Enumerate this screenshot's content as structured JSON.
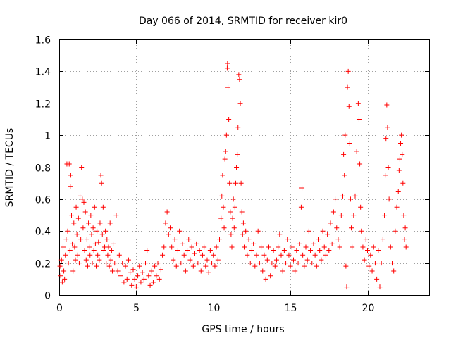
{
  "chart_data": {
    "type": "scatter",
    "title": "Day 066 of 2014, SRMTID for receiver kir0",
    "xlabel": "GPS time / hours",
    "ylabel": "SRMTID / TECUs",
    "xlim": [
      0,
      24
    ],
    "ylim": [
      0,
      1.6
    ],
    "grid": true,
    "marker": "+",
    "marker_color": "#ff0000",
    "x_ticks": [
      {
        "value": 0,
        "label": "0"
      },
      {
        "value": 5,
        "label": "5"
      },
      {
        "value": 10,
        "label": "10"
      },
      {
        "value": 15,
        "label": "15"
      },
      {
        "value": 20,
        "label": "20"
      }
    ],
    "y_ticks": [
      {
        "value": 0,
        "label": "0"
      },
      {
        "value": 0.2,
        "label": "0.2"
      },
      {
        "value": 0.4,
        "label": "0.4"
      },
      {
        "value": 0.6,
        "label": "0.6"
      },
      {
        "value": 0.8,
        "label": "0.8"
      },
      {
        "value": 1.0,
        "label": "1"
      },
      {
        "value": 1.2,
        "label": "1.2"
      },
      {
        "value": 1.4,
        "label": "1.4"
      },
      {
        "value": 1.6,
        "label": "1.6"
      }
    ],
    "series": [
      {
        "name": "SRMTID",
        "points": [
          [
            0.05,
            0.18
          ],
          [
            0.1,
            0.12
          ],
          [
            0.15,
            0.22
          ],
          [
            0.2,
            0.08
          ],
          [
            0.25,
            0.3
          ],
          [
            0.3,
            0.15
          ],
          [
            0.35,
            0.1
          ],
          [
            0.4,
            0.25
          ],
          [
            0.45,
            0.35
          ],
          [
            0.5,
            0.82
          ],
          [
            0.55,
            0.4
          ],
          [
            0.6,
            0.2
          ],
          [
            0.65,
            0.82
          ],
          [
            0.7,
            0.28
          ],
          [
            0.72,
            0.68
          ],
          [
            0.75,
            0.75
          ],
          [
            0.8,
            0.5
          ],
          [
            0.85,
            0.32
          ],
          [
            0.9,
            0.15
          ],
          [
            0.95,
            0.45
          ],
          [
            1.0,
            0.3
          ],
          [
            1.05,
            0.22
          ],
          [
            1.1,
            0.55
          ],
          [
            1.15,
            0.38
          ],
          [
            1.2,
            0.25
          ],
          [
            1.25,
            0.48
          ],
          [
            1.3,
            0.2
          ],
          [
            1.35,
            0.62
          ],
          [
            1.4,
            0.35
          ],
          [
            1.45,
            0.8
          ],
          [
            1.5,
            0.6
          ],
          [
            1.55,
            0.42
          ],
          [
            1.6,
            0.58
          ],
          [
            1.65,
            0.28
          ],
          [
            1.7,
            0.52
          ],
          [
            1.75,
            0.22
          ],
          [
            1.8,
            0.35
          ],
          [
            1.85,
            0.18
          ],
          [
            1.9,
            0.45
          ],
          [
            1.95,
            0.3
          ],
          [
            2.0,
            0.25
          ],
          [
            2.05,
            0.5
          ],
          [
            2.1,
            0.38
          ],
          [
            2.15,
            0.2
          ],
          [
            2.2,
            0.42
          ],
          [
            2.25,
            0.28
          ],
          [
            2.3,
            0.55
          ],
          [
            2.35,
            0.32
          ],
          [
            2.4,
            0.18
          ],
          [
            2.45,
            0.4
          ],
          [
            2.5,
            0.25
          ],
          [
            2.55,
            0.33
          ],
          [
            2.6,
            0.22
          ],
          [
            2.65,
            0.45
          ],
          [
            2.7,
            0.75
          ],
          [
            2.75,
            0.7
          ],
          [
            2.8,
            0.38
          ],
          [
            2.85,
            0.55
          ],
          [
            2.9,
            0.28
          ],
          [
            2.95,
            0.3
          ],
          [
            3.0,
            0.4
          ],
          [
            3.05,
            0.2
          ],
          [
            3.1,
            0.35
          ],
          [
            3.15,
            0.25
          ],
          [
            3.2,
            0.3
          ],
          [
            3.25,
            0.18
          ],
          [
            3.3,
            0.45
          ],
          [
            3.35,
            0.22
          ],
          [
            3.4,
            0.28
          ],
          [
            3.45,
            0.15
          ],
          [
            3.5,
            0.32
          ],
          [
            3.6,
            0.2
          ],
          [
            3.7,
            0.5
          ],
          [
            3.8,
            0.15
          ],
          [
            3.9,
            0.25
          ],
          [
            4.0,
            0.12
          ],
          [
            4.1,
            0.2
          ],
          [
            4.2,
            0.08
          ],
          [
            4.3,
            0.18
          ],
          [
            4.4,
            0.1
          ],
          [
            4.5,
            0.22
          ],
          [
            4.6,
            0.14
          ],
          [
            4.7,
            0.06
          ],
          [
            4.8,
            0.16
          ],
          [
            4.9,
            0.1
          ],
          [
            5.0,
            0.05
          ],
          [
            5.1,
            0.12
          ],
          [
            5.2,
            0.18
          ],
          [
            5.3,
            0.08
          ],
          [
            5.4,
            0.14
          ],
          [
            5.5,
            0.1
          ],
          [
            5.6,
            0.2
          ],
          [
            5.7,
            0.28
          ],
          [
            5.8,
            0.12
          ],
          [
            5.9,
            0.06
          ],
          [
            6.0,
            0.15
          ],
          [
            6.1,
            0.08
          ],
          [
            6.2,
            0.18
          ],
          [
            6.3,
            0.12
          ],
          [
            6.4,
            0.2
          ],
          [
            6.5,
            0.1
          ],
          [
            6.6,
            0.16
          ],
          [
            6.7,
            0.25
          ],
          [
            6.8,
            0.3
          ],
          [
            6.9,
            0.45
          ],
          [
            7.0,
            0.52
          ],
          [
            7.1,
            0.38
          ],
          [
            7.2,
            0.42
          ],
          [
            7.3,
            0.3
          ],
          [
            7.4,
            0.22
          ],
          [
            7.5,
            0.35
          ],
          [
            7.6,
            0.18
          ],
          [
            7.7,
            0.28
          ],
          [
            7.8,
            0.4
          ],
          [
            7.9,
            0.2
          ],
          [
            8.0,
            0.32
          ],
          [
            8.1,
            0.25
          ],
          [
            8.2,
            0.15
          ],
          [
            8.3,
            0.28
          ],
          [
            8.4,
            0.35
          ],
          [
            8.5,
            0.22
          ],
          [
            8.6,
            0.3
          ],
          [
            8.7,
            0.18
          ],
          [
            8.8,
            0.26
          ],
          [
            8.9,
            0.32
          ],
          [
            9.0,
            0.2
          ],
          [
            9.1,
            0.28
          ],
          [
            9.2,
            0.15
          ],
          [
            9.3,
            0.25
          ],
          [
            9.4,
            0.3
          ],
          [
            9.5,
            0.18
          ],
          [
            9.6,
            0.22
          ],
          [
            9.7,
            0.14
          ],
          [
            9.8,
            0.28
          ],
          [
            9.9,
            0.2
          ],
          [
            10.0,
            0.25
          ],
          [
            10.1,
            0.18
          ],
          [
            10.2,
            0.3
          ],
          [
            10.3,
            0.22
          ],
          [
            10.4,
            0.35
          ],
          [
            10.5,
            0.48
          ],
          [
            10.55,
            0.62
          ],
          [
            10.6,
            0.75
          ],
          [
            10.65,
            0.55
          ],
          [
            10.7,
            0.42
          ],
          [
            10.75,
            0.85
          ],
          [
            10.8,
            0.9
          ],
          [
            10.85,
            1.0
          ],
          [
            10.9,
            1.42
          ],
          [
            10.92,
            1.45
          ],
          [
            10.95,
            1.3
          ],
          [
            11.0,
            1.1
          ],
          [
            11.05,
            0.7
          ],
          [
            11.1,
            0.52
          ],
          [
            11.15,
            0.38
          ],
          [
            11.2,
            0.3
          ],
          [
            11.25,
            0.48
          ],
          [
            11.3,
            0.6
          ],
          [
            11.35,
            0.42
          ],
          [
            11.4,
            0.55
          ],
          [
            11.45,
            0.7
          ],
          [
            11.5,
            0.8
          ],
          [
            11.55,
            0.88
          ],
          [
            11.6,
            1.05
          ],
          [
            11.65,
            1.38
          ],
          [
            11.7,
            1.35
          ],
          [
            11.75,
            1.2
          ],
          [
            11.8,
            0.7
          ],
          [
            11.85,
            0.52
          ],
          [
            11.9,
            0.38
          ],
          [
            11.95,
            0.45
          ],
          [
            12.0,
            0.3
          ],
          [
            12.1,
            0.4
          ],
          [
            12.2,
            0.25
          ],
          [
            12.3,
            0.35
          ],
          [
            12.4,
            0.2
          ],
          [
            12.5,
            0.28
          ],
          [
            12.6,
            0.32
          ],
          [
            12.7,
            0.18
          ],
          [
            12.8,
            0.25
          ],
          [
            12.9,
            0.4
          ],
          [
            13.0,
            0.2
          ],
          [
            13.1,
            0.3
          ],
          [
            13.2,
            0.15
          ],
          [
            13.3,
            0.25
          ],
          [
            13.4,
            0.1
          ],
          [
            13.5,
            0.22
          ],
          [
            13.6,
            0.3
          ],
          [
            13.7,
            0.12
          ],
          [
            13.8,
            0.2
          ],
          [
            13.9,
            0.28
          ],
          [
            14.0,
            0.18
          ],
          [
            14.1,
            0.22
          ],
          [
            14.2,
            0.3
          ],
          [
            14.3,
            0.38
          ],
          [
            14.4,
            0.25
          ],
          [
            14.5,
            0.15
          ],
          [
            14.6,
            0.28
          ],
          [
            14.7,
            0.2
          ],
          [
            14.8,
            0.35
          ],
          [
            14.9,
            0.25
          ],
          [
            15.0,
            0.18
          ],
          [
            15.1,
            0.3
          ],
          [
            15.2,
            0.22
          ],
          [
            15.3,
            0.15
          ],
          [
            15.4,
            0.28
          ],
          [
            15.5,
            0.2
          ],
          [
            15.6,
            0.32
          ],
          [
            15.7,
            0.55
          ],
          [
            15.75,
            0.67
          ],
          [
            15.8,
            0.25
          ],
          [
            15.9,
            0.18
          ],
          [
            16.0,
            0.3
          ],
          [
            16.1,
            0.22
          ],
          [
            16.2,
            0.4
          ],
          [
            16.3,
            0.28
          ],
          [
            16.4,
            0.2
          ],
          [
            16.5,
            0.32
          ],
          [
            16.6,
            0.25
          ],
          [
            16.7,
            0.18
          ],
          [
            16.8,
            0.35
          ],
          [
            16.9,
            0.28
          ],
          [
            17.0,
            0.22
          ],
          [
            17.1,
            0.4
          ],
          [
            17.2,
            0.3
          ],
          [
            17.3,
            0.25
          ],
          [
            17.4,
            0.38
          ],
          [
            17.5,
            0.28
          ],
          [
            17.6,
            0.45
          ],
          [
            17.7,
            0.32
          ],
          [
            17.8,
            0.52
          ],
          [
            17.9,
            0.6
          ],
          [
            18.0,
            0.42
          ],
          [
            18.1,
            0.35
          ],
          [
            18.2,
            0.3
          ],
          [
            18.3,
            0.5
          ],
          [
            18.4,
            0.62
          ],
          [
            18.45,
            0.88
          ],
          [
            18.5,
            0.75
          ],
          [
            18.55,
            1.0
          ],
          [
            18.6,
            0.18
          ],
          [
            18.65,
            0.05
          ],
          [
            18.7,
            1.3
          ],
          [
            18.75,
            1.4
          ],
          [
            18.8,
            1.18
          ],
          [
            18.85,
            0.95
          ],
          [
            18.9,
            0.6
          ],
          [
            18.95,
            0.42
          ],
          [
            19.0,
            0.3
          ],
          [
            19.1,
            0.5
          ],
          [
            19.2,
            0.62
          ],
          [
            19.3,
            0.9
          ],
          [
            19.4,
            1.2
          ],
          [
            19.45,
            1.1
          ],
          [
            19.5,
            0.82
          ],
          [
            19.55,
            0.55
          ],
          [
            19.6,
            0.4
          ],
          [
            19.7,
            0.3
          ],
          [
            19.8,
            0.22
          ],
          [
            19.9,
            0.35
          ],
          [
            20.0,
            0.28
          ],
          [
            20.1,
            0.18
          ],
          [
            20.2,
            0.25
          ],
          [
            20.3,
            0.15
          ],
          [
            20.4,
            0.3
          ],
          [
            20.5,
            0.2
          ],
          [
            20.6,
            0.1
          ],
          [
            20.7,
            0.28
          ],
          [
            20.8,
            0.05
          ],
          [
            20.9,
            0.2
          ],
          [
            21.0,
            0.35
          ],
          [
            21.1,
            0.5
          ],
          [
            21.15,
            0.75
          ],
          [
            21.2,
            0.98
          ],
          [
            21.25,
            1.19
          ],
          [
            21.3,
            1.05
          ],
          [
            21.35,
            0.8
          ],
          [
            21.4,
            0.6
          ],
          [
            21.5,
            0.3
          ],
          [
            21.6,
            0.2
          ],
          [
            21.7,
            0.15
          ],
          [
            21.8,
            0.4
          ],
          [
            21.9,
            0.55
          ],
          [
            22.0,
            0.65
          ],
          [
            22.05,
            0.78
          ],
          [
            22.1,
            0.85
          ],
          [
            22.15,
            0.95
          ],
          [
            22.2,
            1.0
          ],
          [
            22.25,
            0.88
          ],
          [
            22.3,
            0.7
          ],
          [
            22.35,
            0.5
          ],
          [
            22.4,
            0.35
          ],
          [
            22.45,
            0.42
          ],
          [
            22.5,
            0.3
          ]
        ]
      }
    ]
  }
}
